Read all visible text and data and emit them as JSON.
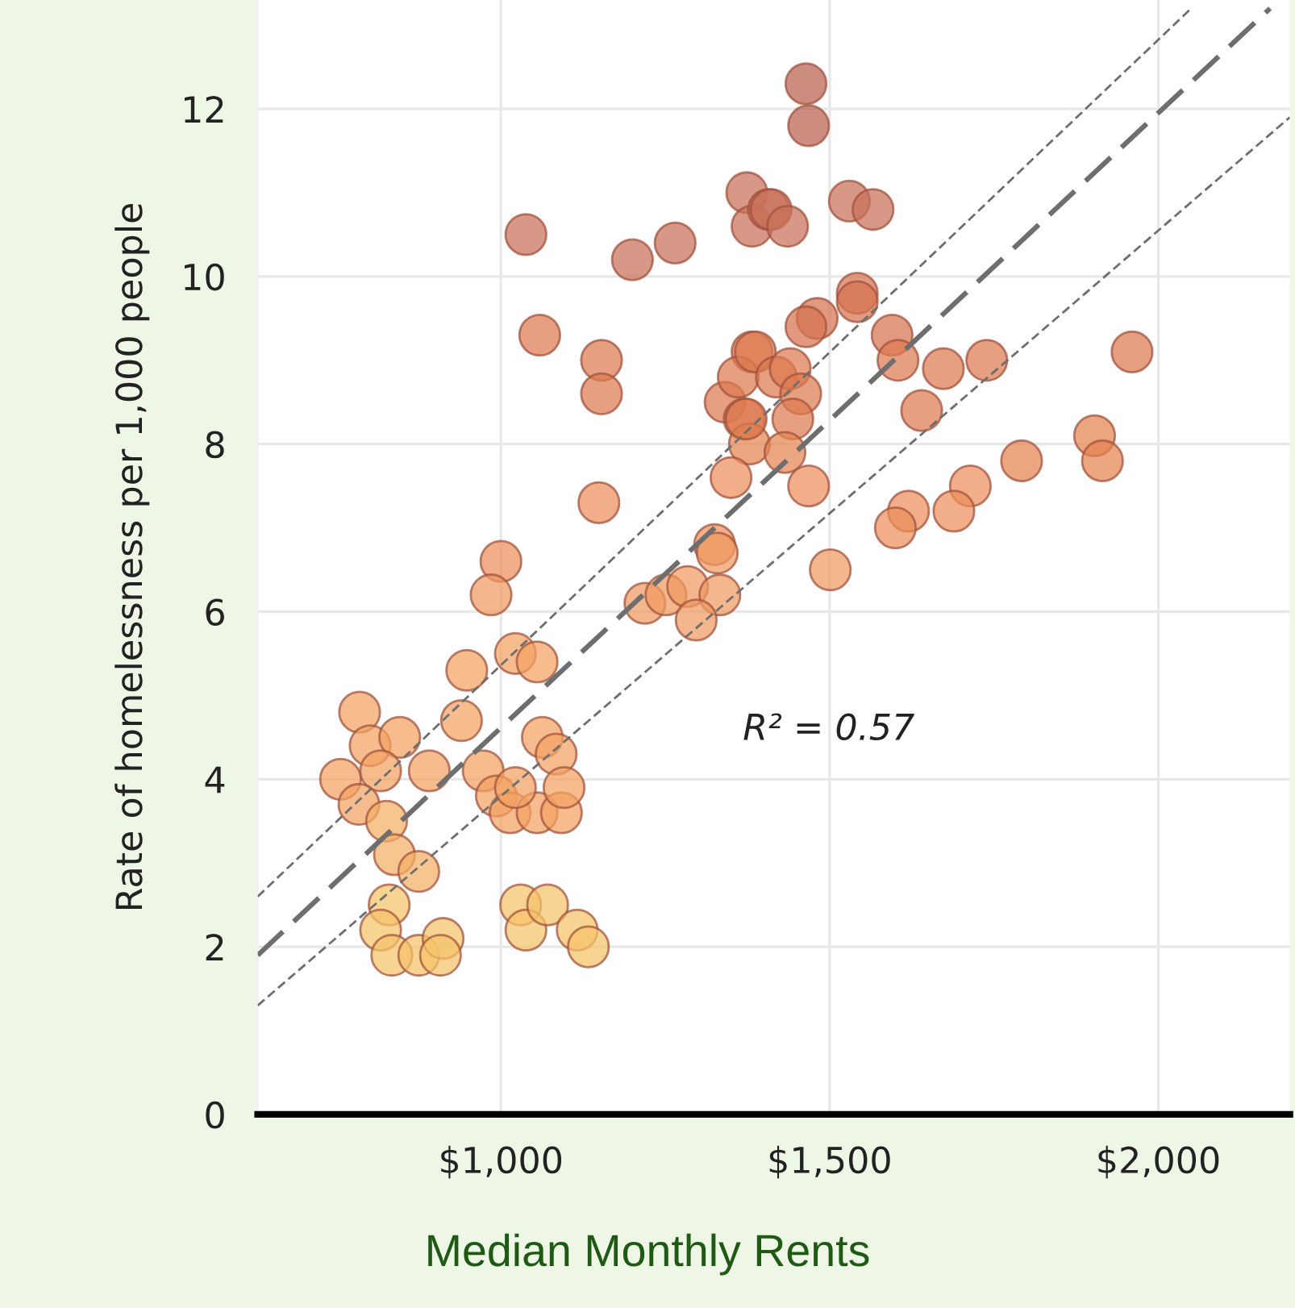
{
  "chart_data": {
    "type": "scatter",
    "xlabel": "Median Monthly Rents",
    "ylabel": "Rate of homelessness per 1,000 people",
    "annotations": [
      "R² = 0.57"
    ],
    "xlim": [
      630,
      2200
    ],
    "ylim": [
      0,
      13.3
    ],
    "xticks": [
      {
        "value": 1000,
        "label": "$1,000"
      },
      {
        "value": 1500,
        "label": "$1,500"
      },
      {
        "value": 2000,
        "label": "$2,000"
      }
    ],
    "yticks": [
      0,
      2,
      4,
      6,
      8,
      10,
      12
    ],
    "grid": true,
    "series": [
      {
        "marker": "circle",
        "x": [
          1038,
          1200,
          1265,
          1374,
          1382,
          1407,
          1059,
          1153,
          1153,
          1149,
          1000,
          1382,
          1341,
          1361,
          1370,
          1378,
          1350,
          1325,
          1464,
          1468,
          1411,
          1436,
          1530,
          1566,
          1542,
          1542,
          1481,
          1464,
          1595,
          1604,
          1673,
          1739,
          1960,
          1387,
          1419,
          1440,
          1456,
          1373,
          1444,
          1432,
          1640,
          1468,
          1792,
          1903,
          1915,
          1714,
          1620,
          1689,
          1600,
          1501,
          985,
          1219,
          1251,
          1284,
          1329,
          1333,
          1297,
          1022,
          1055,
          948,
          940,
          785,
          801,
          846,
          756,
          817,
          784,
          891,
          826,
          838,
          875,
          1063,
          1084,
          973,
          993,
          1014,
          1055,
          1092,
          1096,
          1022,
          830,
          817,
          834,
          875,
          912,
          908,
          1030,
          1038,
          1071,
          1116,
          1133
        ],
        "values": [
          10.5,
          10.2,
          10.4,
          11.0,
          10.6,
          10.8,
          9.3,
          9.0,
          8.6,
          7.3,
          6.6,
          9.1,
          8.5,
          8.8,
          8.3,
          8.0,
          7.6,
          6.8,
          12.3,
          11.8,
          10.8,
          10.6,
          10.9,
          10.8,
          9.8,
          9.7,
          9.5,
          9.4,
          9.3,
          9.0,
          8.9,
          9.0,
          9.1,
          9.1,
          8.8,
          8.9,
          8.6,
          8.3,
          8.3,
          7.9,
          8.4,
          7.5,
          7.8,
          8.1,
          7.8,
          7.5,
          7.2,
          7.2,
          7.0,
          6.5,
          6.2,
          6.1,
          6.2,
          6.3,
          6.7,
          6.2,
          5.9,
          5.5,
          5.4,
          5.3,
          4.7,
          4.8,
          4.4,
          4.5,
          4.0,
          4.1,
          3.7,
          4.1,
          3.5,
          3.1,
          2.9,
          4.5,
          4.3,
          4.1,
          3.8,
          3.6,
          3.6,
          3.6,
          3.9,
          3.9,
          2.5,
          2.2,
          1.9,
          1.9,
          2.1,
          1.9,
          2.5,
          2.2,
          2.5,
          2.2,
          2.0
        ],
        "colors": [
          "#c8705a",
          "#c8705a",
          "#c8705a",
          "#c8705a",
          "#c8705a",
          "#c8705a",
          "#dc7a4f",
          "#dc7a4f",
          "#dc7a4f",
          "#eb8f5a",
          "#eb8f5a",
          "#dc7a4f",
          "#dc7a4f",
          "#dc7a4f",
          "#dc7a4f",
          "#e4834f",
          "#eb8f5a",
          "#eb8f5a",
          "#b8604f",
          "#b8604f",
          "#c8705a",
          "#c8705a",
          "#c8705a",
          "#c8705a",
          "#d5734f",
          "#d5734f",
          "#d5734f",
          "#d5734f",
          "#d5734f",
          "#dc7a4f",
          "#dc7a4f",
          "#dc7a4f",
          "#dc7a4f",
          "#dc7a4f",
          "#dc7a4f",
          "#dc7a4f",
          "#dc7a4f",
          "#dc7a4f",
          "#dc7a4f",
          "#e4834f",
          "#dc7a4f",
          "#eb8f5a",
          "#e4834f",
          "#e4834f",
          "#e4834f",
          "#eb8f5a",
          "#eb8f5a",
          "#eb8f5a",
          "#eb8f5a",
          "#f09a60",
          "#f09a60",
          "#f09a60",
          "#f09a60",
          "#f09a60",
          "#f09a60",
          "#f09a60",
          "#f09a60",
          "#f2a263",
          "#f2a263",
          "#f2a263",
          "#f2a263",
          "#f2a263",
          "#f2a263",
          "#f2a263",
          "#f2a263",
          "#f2a263",
          "#f2a263",
          "#f2a263",
          "#f3ae65",
          "#f3ae65",
          "#f3ae65",
          "#f2a263",
          "#f2a263",
          "#f2a263",
          "#f2a263",
          "#f2a263",
          "#f2a263",
          "#f2a263",
          "#f2a263",
          "#f2a263",
          "#f5c46a",
          "#f5c46a",
          "#f5c46a",
          "#f5c46a",
          "#f5c46a",
          "#f5c46a",
          "#f5c46a",
          "#f5c46a",
          "#f5c46a",
          "#f5c46a",
          "#f5c46a"
        ]
      },
      {
        "type": "line",
        "color": "#6e6e6e",
        "line_style": "dashed",
        "x": [
          630,
          2170
        ],
        "values": [
          1.9,
          13.2
        ]
      },
      {
        "type": "line",
        "color": "#6e6e6e",
        "line_style": "dotted",
        "x": [
          630,
          2050
        ],
        "values": [
          2.6,
          13.2
        ]
      },
      {
        "type": "line",
        "color": "#6e6e6e",
        "line_style": "dotted",
        "x": [
          630,
          2200
        ],
        "values": [
          1.3,
          11.9
        ]
      }
    ]
  }
}
